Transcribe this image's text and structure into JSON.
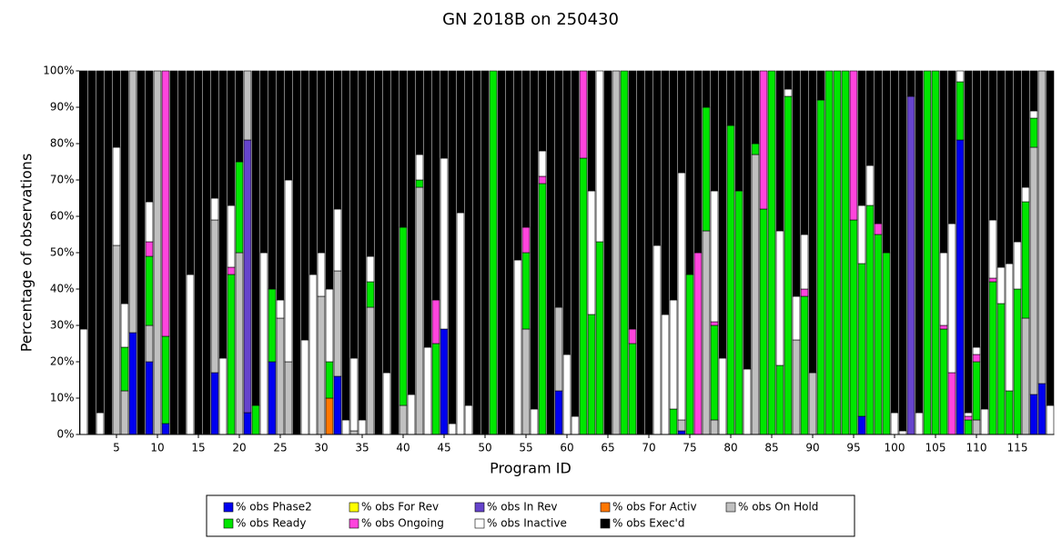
{
  "chart_data": {
    "type": "stacked_bar",
    "title": "GN 2018B on 250430",
    "x_label": "Program ID",
    "y_label": "Percentage of observations",
    "xlim": [
      0.5,
      119.5
    ],
    "xticks": [
      5,
      10,
      15,
      20,
      25,
      30,
      35,
      40,
      45,
      50,
      55,
      60,
      65,
      70,
      75,
      80,
      85,
      90,
      95,
      100,
      105,
      110,
      115
    ],
    "ylim": [
      0,
      100
    ],
    "yticks": [
      {
        "value": 0,
        "label": "0%"
      },
      {
        "value": 10,
        "label": "10%"
      },
      {
        "value": 20,
        "label": "20%"
      },
      {
        "value": 30,
        "label": "30%"
      },
      {
        "value": 40,
        "label": "40%"
      },
      {
        "value": 50,
        "label": "50%"
      },
      {
        "value": 60,
        "label": "60%"
      },
      {
        "value": 70,
        "label": "70%"
      },
      {
        "value": 80,
        "label": "80%"
      },
      {
        "value": 90,
        "label": "90%"
      },
      {
        "value": 100,
        "label": "100%"
      }
    ],
    "x": [
      1,
      2,
      3,
      4,
      5,
      6,
      7,
      8,
      9,
      10,
      11,
      12,
      13,
      14,
      15,
      16,
      17,
      18,
      19,
      20,
      21,
      22,
      23,
      24,
      25,
      26,
      27,
      28,
      29,
      30,
      31,
      32,
      33,
      34,
      35,
      36,
      37,
      38,
      39,
      40,
      41,
      42,
      43,
      44,
      45,
      46,
      47,
      48,
      49,
      50,
      51,
      52,
      53,
      54,
      55,
      56,
      57,
      58,
      59,
      60,
      61,
      62,
      63,
      64,
      65,
      66,
      67,
      68,
      69,
      70,
      71,
      72,
      73,
      74,
      75,
      76,
      77,
      78,
      79,
      80,
      81,
      82,
      83,
      84,
      85,
      86,
      87,
      88,
      89,
      90,
      91,
      92,
      93,
      94,
      95,
      96,
      97,
      98,
      99,
      100,
      101,
      102,
      103,
      104,
      105,
      106,
      107,
      108,
      109,
      110,
      111,
      112,
      113,
      114,
      115,
      116,
      117,
      118,
      119
    ],
    "series": [
      {
        "name": "% obs Phase2",
        "color": "#0000f0",
        "values": [
          0,
          0,
          0,
          0,
          0,
          0,
          28,
          0,
          20,
          0,
          3,
          0,
          0,
          0,
          0,
          0,
          17,
          0,
          0,
          0,
          6,
          0,
          0,
          20,
          0,
          0,
          0,
          0,
          0,
          0,
          0,
          16,
          0,
          0,
          0,
          0,
          0,
          0,
          0,
          0,
          0,
          0,
          0,
          0,
          29,
          0,
          0,
          0,
          0,
          0,
          0,
          0,
          0,
          0,
          0,
          0,
          0,
          0,
          12,
          0,
          0,
          0,
          0,
          0,
          0,
          0,
          0,
          0,
          0,
          0,
          0,
          0,
          0,
          1,
          0,
          0,
          0,
          0,
          0,
          0,
          0,
          0,
          0,
          0,
          0,
          0,
          0,
          0,
          0,
          0,
          0,
          0,
          0,
          0,
          0,
          5,
          0,
          0,
          0,
          0,
          0,
          0,
          0,
          0,
          0,
          0,
          0,
          81,
          0,
          0,
          0,
          0,
          0,
          0,
          0,
          0,
          11,
          14,
          0
        ]
      },
      {
        "name": "% obs For Rev",
        "color": "#ffff00",
        "values": [
          0,
          0,
          0,
          0,
          0,
          0,
          0,
          0,
          0,
          0,
          0,
          0,
          0,
          0,
          0,
          0,
          0,
          0,
          0,
          0,
          0,
          0,
          0,
          0,
          0,
          0,
          0,
          0,
          0,
          0,
          0,
          0,
          0,
          0,
          0,
          0,
          0,
          0,
          0,
          0,
          0,
          0,
          0,
          0,
          0,
          0,
          0,
          0,
          0,
          0,
          0,
          0,
          0,
          0,
          0,
          0,
          0,
          0,
          0,
          0,
          0,
          0,
          0,
          0,
          0,
          0,
          0,
          0,
          0,
          0,
          0,
          0,
          0,
          0,
          0,
          0,
          0,
          0,
          0,
          0,
          0,
          0,
          0,
          0,
          0,
          0,
          0,
          0,
          0,
          0,
          0,
          0,
          0,
          0,
          0,
          0,
          0,
          0,
          0,
          0,
          0,
          0,
          0,
          0,
          0,
          0,
          0,
          0,
          0,
          0,
          0,
          0,
          0,
          0,
          0,
          0,
          0,
          0,
          0
        ]
      },
      {
        "name": "% obs In Rev",
        "color": "#6644cc",
        "values": [
          0,
          0,
          0,
          0,
          0,
          0,
          0,
          0,
          0,
          0,
          0,
          0,
          0,
          0,
          0,
          0,
          0,
          0,
          0,
          0,
          75,
          0,
          0,
          0,
          0,
          0,
          0,
          0,
          0,
          0,
          0,
          0,
          0,
          0,
          0,
          0,
          0,
          0,
          0,
          0,
          0,
          0,
          0,
          0,
          0,
          0,
          0,
          0,
          0,
          0,
          0,
          0,
          0,
          0,
          0,
          0,
          0,
          0,
          0,
          0,
          0,
          0,
          0,
          0,
          0,
          0,
          0,
          0,
          0,
          0,
          0,
          0,
          0,
          0,
          0,
          0,
          0,
          0,
          0,
          0,
          0,
          0,
          0,
          0,
          0,
          0,
          0,
          0,
          0,
          0,
          0,
          0,
          0,
          0,
          0,
          0,
          0,
          0,
          0,
          0,
          0,
          93,
          0,
          0,
          0,
          0,
          0,
          0,
          0,
          0,
          0,
          0,
          0,
          0,
          0,
          0,
          0,
          0,
          0
        ]
      },
      {
        "name": "% obs For Activ",
        "color": "#ff7700",
        "values": [
          0,
          0,
          0,
          0,
          0,
          0,
          0,
          0,
          0,
          0,
          0,
          0,
          0,
          0,
          0,
          0,
          0,
          0,
          0,
          0,
          0,
          0,
          0,
          0,
          0,
          0,
          0,
          0,
          0,
          0,
          10,
          0,
          0,
          0,
          0,
          0,
          0,
          0,
          0,
          0,
          0,
          0,
          0,
          0,
          0,
          0,
          0,
          0,
          0,
          0,
          0,
          0,
          0,
          0,
          0,
          0,
          0,
          0,
          0,
          0,
          0,
          0,
          0,
          0,
          0,
          0,
          0,
          0,
          0,
          0,
          0,
          0,
          0,
          0,
          0,
          0,
          0,
          0,
          0,
          0,
          0,
          0,
          0,
          0,
          0,
          0,
          0,
          0,
          0,
          0,
          0,
          0,
          0,
          0,
          0,
          0,
          0,
          0,
          0,
          0,
          0,
          0,
          0,
          0,
          0,
          0,
          0,
          0,
          0,
          0,
          0,
          0,
          0,
          0,
          0,
          0,
          0,
          0,
          0
        ]
      },
      {
        "name": "% obs On Hold",
        "color": "#c0c0c0",
        "values": [
          0,
          0,
          0,
          0,
          52,
          12,
          72,
          0,
          10,
          100,
          0,
          0,
          0,
          0,
          0,
          0,
          42,
          0,
          0,
          50,
          19,
          0,
          0,
          0,
          32,
          20,
          0,
          0,
          0,
          38,
          0,
          29,
          0,
          1,
          0,
          35,
          0,
          0,
          0,
          8,
          0,
          68,
          0,
          0,
          0,
          0,
          0,
          0,
          0,
          0,
          0,
          0,
          0,
          0,
          29,
          0,
          0,
          0,
          23,
          0,
          0,
          0,
          0,
          0,
          0,
          100,
          0,
          0,
          0,
          0,
          0,
          0,
          0,
          3,
          0,
          0,
          56,
          4,
          0,
          0,
          0,
          0,
          77,
          0,
          0,
          0,
          0,
          26,
          0,
          17,
          0,
          0,
          0,
          0,
          0,
          0,
          0,
          0,
          0,
          0,
          0,
          0,
          0,
          0,
          0,
          0,
          0,
          0,
          0,
          4,
          0,
          0,
          0,
          0,
          0,
          32,
          68,
          86,
          0
        ]
      },
      {
        "name": "% obs Ready",
        "color": "#00e600",
        "values": [
          0,
          0,
          0,
          0,
          0,
          12,
          0,
          0,
          19,
          0,
          24,
          0,
          0,
          0,
          0,
          0,
          0,
          0,
          44,
          25,
          0,
          8,
          0,
          20,
          0,
          0,
          0,
          0,
          0,
          0,
          10,
          0,
          0,
          0,
          0,
          7,
          0,
          0,
          0,
          49,
          0,
          2,
          0,
          25,
          0,
          0,
          0,
          0,
          0,
          0,
          100,
          0,
          0,
          0,
          21,
          0,
          69,
          0,
          0,
          0,
          0,
          76,
          33,
          53,
          0,
          0,
          100,
          25,
          0,
          0,
          0,
          0,
          7,
          0,
          44,
          0,
          34,
          26,
          0,
          85,
          67,
          0,
          3,
          62,
          100,
          19,
          93,
          0,
          38,
          0,
          92,
          100,
          100,
          100,
          59,
          42,
          63,
          55,
          50,
          0,
          0,
          0,
          0,
          100,
          100,
          29,
          0,
          16,
          4,
          16,
          0,
          42,
          36,
          12,
          40,
          32,
          8,
          0,
          0
        ]
      },
      {
        "name": "% obs Ongoing",
        "color": "#ff44dd",
        "values": [
          0,
          0,
          0,
          0,
          0,
          0,
          0,
          0,
          4,
          0,
          73,
          0,
          0,
          0,
          0,
          0,
          0,
          0,
          2,
          0,
          0,
          0,
          0,
          0,
          0,
          0,
          0,
          0,
          0,
          0,
          0,
          0,
          0,
          0,
          0,
          0,
          0,
          0,
          0,
          0,
          0,
          0,
          0,
          12,
          0,
          0,
          0,
          0,
          0,
          0,
          0,
          0,
          0,
          0,
          7,
          0,
          2,
          0,
          0,
          0,
          0,
          24,
          0,
          0,
          0,
          0,
          0,
          4,
          0,
          0,
          0,
          0,
          0,
          0,
          0,
          50,
          0,
          1,
          0,
          0,
          0,
          0,
          0,
          38,
          0,
          0,
          0,
          0,
          2,
          0,
          0,
          0,
          0,
          0,
          41,
          0,
          0,
          3,
          0,
          0,
          0,
          0,
          0,
          0,
          0,
          1,
          17,
          0,
          1,
          2,
          0,
          1,
          0,
          0,
          0,
          0,
          0,
          0,
          0
        ]
      },
      {
        "name": "% obs Inactive",
        "color": "#ffffff",
        "values": [
          29,
          0,
          6,
          0,
          27,
          12,
          0,
          0,
          11,
          0,
          0,
          0,
          0,
          44,
          0,
          0,
          6,
          21,
          17,
          0,
          0,
          0,
          50,
          0,
          5,
          50,
          0,
          26,
          44,
          12,
          20,
          17,
          4,
          20,
          4,
          7,
          0,
          17,
          0,
          0,
          11,
          7,
          24,
          0,
          47,
          3,
          61,
          8,
          0,
          0,
          0,
          0,
          0,
          48,
          0,
          7,
          7,
          0,
          0,
          22,
          5,
          0,
          34,
          47,
          0,
          0,
          0,
          0,
          0,
          0,
          52,
          33,
          30,
          68,
          0,
          0,
          0,
          36,
          21,
          0,
          0,
          18,
          0,
          0,
          0,
          37,
          2,
          12,
          15,
          0,
          0,
          0,
          0,
          0,
          0,
          16,
          11,
          0,
          0,
          6,
          1,
          0,
          6,
          0,
          0,
          20,
          41,
          3,
          1,
          2,
          7,
          16,
          10,
          35,
          13,
          4,
          2,
          0,
          8
        ]
      },
      {
        "name": "% obs Exec'd",
        "color": "#000000",
        "values": [
          71,
          100,
          94,
          100,
          21,
          64,
          0,
          100,
          36,
          0,
          0,
          100,
          100,
          56,
          100,
          100,
          35,
          79,
          37,
          25,
          0,
          92,
          50,
          60,
          63,
          30,
          100,
          74,
          56,
          50,
          60,
          38,
          96,
          79,
          96,
          51,
          100,
          83,
          100,
          43,
          89,
          23,
          76,
          63,
          24,
          97,
          39,
          92,
          100,
          100,
          0,
          100,
          100,
          52,
          43,
          93,
          22,
          100,
          65,
          78,
          95,
          0,
          33,
          0,
          100,
          0,
          0,
          71,
          100,
          100,
          48,
          67,
          63,
          28,
          56,
          50,
          10,
          33,
          79,
          15,
          33,
          82,
          20,
          0,
          0,
          44,
          5,
          62,
          45,
          83,
          8,
          0,
          0,
          0,
          0,
          37,
          26,
          42,
          50,
          94,
          99,
          7,
          94,
          0,
          0,
          50,
          42,
          0,
          94,
          76,
          93,
          41,
          54,
          53,
          47,
          32,
          11,
          0,
          92
        ]
      }
    ]
  }
}
